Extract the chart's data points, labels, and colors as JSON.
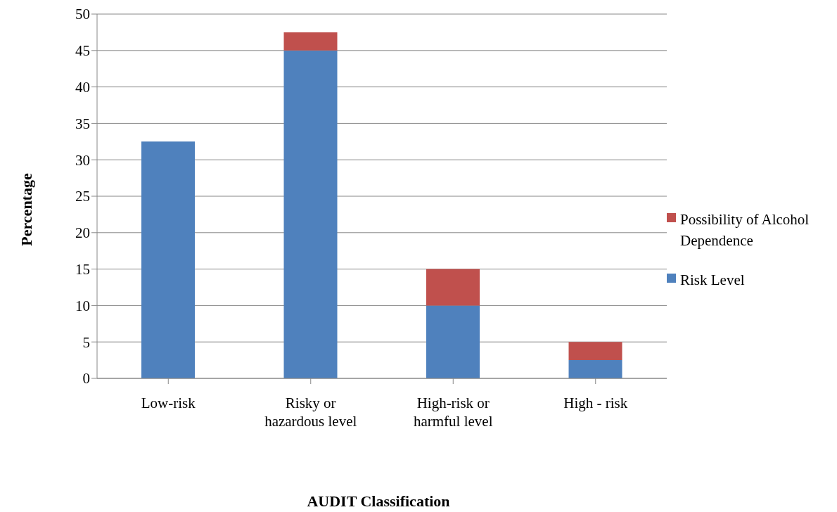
{
  "chart_data": {
    "type": "bar",
    "stacked": true,
    "xlabel": "AUDIT Classification",
    "ylabel": "Percentage",
    "categories": [
      "Low-risk",
      "Risky or hazardous level",
      "High-risk or harmful level",
      "High - risk"
    ],
    "series": [
      {
        "name": "Risk Level",
        "color": "#4f81bd",
        "values": [
          32.5,
          45,
          10,
          2.5
        ]
      },
      {
        "name": "Possibility of Alcohol Dependence",
        "color": "#c0504d",
        "values": [
          0,
          2.5,
          5,
          2.5
        ]
      }
    ],
    "ylim": [
      0,
      50
    ],
    "yticks": [
      0,
      5,
      10,
      15,
      20,
      25,
      30,
      35,
      40,
      45,
      50
    ],
    "grid": "y",
    "legend": "right"
  }
}
